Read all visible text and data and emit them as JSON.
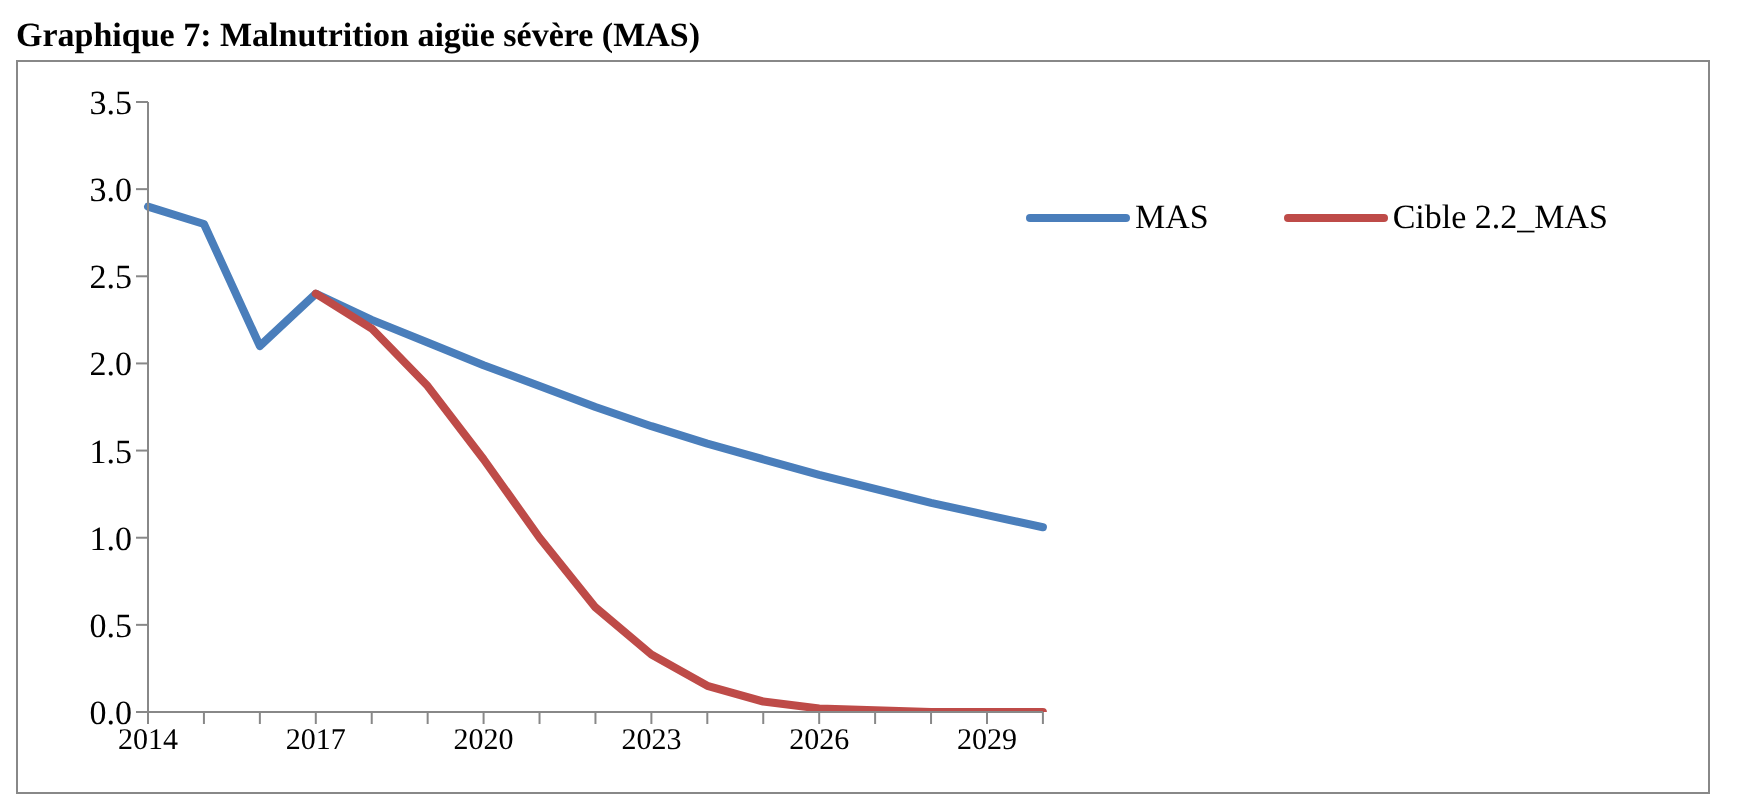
{
  "chart_data": {
    "type": "line",
    "title": "Graphique 7: Malnutrition aigüe sévère (MAS)",
    "categories": [
      "2014",
      null,
      null,
      "2017",
      null,
      null,
      "2020",
      null,
      null,
      "2023",
      null,
      null,
      "2026",
      null,
      null,
      "2029",
      null
    ],
    "series": [
      {
        "name": "MAS",
        "color": "#4a7ebb",
        "values": [
          2.9,
          2.8,
          2.1,
          2.4,
          2.25,
          2.12,
          1.99,
          1.87,
          1.75,
          1.64,
          1.54,
          1.45,
          1.36,
          1.28,
          1.2,
          1.13,
          1.06
        ]
      },
      {
        "name": "Cible 2.2_MAS",
        "color": "#be4b48",
        "values": [
          null,
          null,
          null,
          2.4,
          2.2,
          1.87,
          1.45,
          1.0,
          0.6,
          0.33,
          0.15,
          0.06,
          0.02,
          0.01,
          0,
          0,
          0
        ]
      }
    ],
    "ylim": [
      0,
      3.5
    ],
    "yticks": [
      {
        "value": 0,
        "label": "0.0"
      },
      0.5,
      {
        "value": 1,
        "label": "1.0"
      },
      1.5,
      {
        "value": 2,
        "label": "2.0"
      },
      2.5,
      {
        "value": 3,
        "label": "3.0"
      },
      3.5
    ],
    "grid": false,
    "legend": "top right",
    "marker": "none",
    "line_style": "solid"
  }
}
